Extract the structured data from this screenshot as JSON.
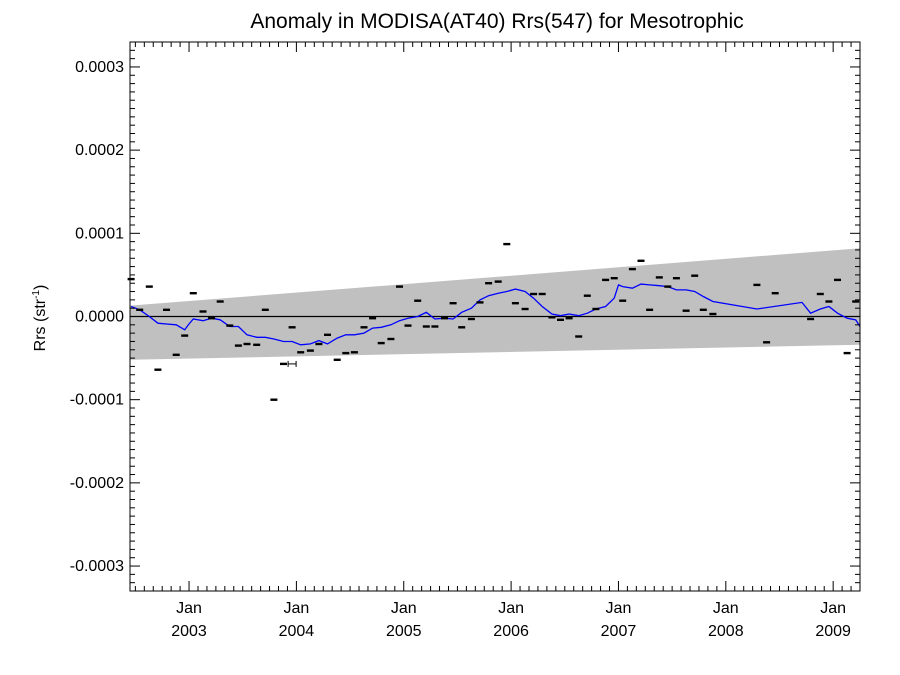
{
  "chart_data": {
    "type": "scatter",
    "title": "Anomaly in MODISA(AT40) Rrs(547) for Mesotrophic",
    "ylabel": "Rrs (str",
    "ylabel_sup": "-1",
    "ylabel_close": ")",
    "xlabel": "",
    "xlim": [
      2002.45,
      2009.25
    ],
    "ylim": [
      -0.00033,
      0.00033
    ],
    "grid": false,
    "yticks": [
      {
        "value": 0.0003,
        "label": "0.0003"
      },
      {
        "value": 0.0002,
        "label": "0.0002"
      },
      {
        "value": 0.0001,
        "label": "0.0001"
      },
      {
        "value": 0.0,
        "label": "0.0000"
      },
      {
        "value": -0.0001,
        "label": "-0.0001"
      },
      {
        "value": -0.0002,
        "label": "-0.0002"
      },
      {
        "value": -0.0003,
        "label": "-0.0003"
      }
    ],
    "xticks": [
      {
        "value": 2003.0,
        "month": "Jan",
        "year": "2003"
      },
      {
        "value": 2004.0,
        "month": "Jan",
        "year": "2004"
      },
      {
        "value": 2005.0,
        "month": "Jan",
        "year": "2005"
      },
      {
        "value": 2006.0,
        "month": "Jan",
        "year": "2006"
      },
      {
        "value": 2007.0,
        "month": "Jan",
        "year": "2007"
      },
      {
        "value": 2008.0,
        "month": "Jan",
        "year": "2008"
      },
      {
        "value": 2009.0,
        "month": "Jan",
        "year": "2009"
      }
    ],
    "band": {
      "x": [
        2002.45,
        2009.25
      ],
      "upper": [
        1.3e-05,
        8.2e-05
      ],
      "lower": [
        -5.2e-05,
        -3.4e-05
      ],
      "color": "#c0c0c0"
    },
    "zero_line": 0.0,
    "points": {
      "color": "#000000",
      "x": [
        2002.46,
        2002.54,
        2002.63,
        2002.71,
        2002.79,
        2002.88,
        2002.96,
        2003.04,
        2003.13,
        2003.21,
        2003.29,
        2003.38,
        2003.46,
        2003.54,
        2003.63,
        2003.71,
        2003.79,
        2003.88,
        2003.96,
        2004.04,
        2004.13,
        2004.21,
        2004.29,
        2004.38,
        2004.46,
        2004.54,
        2004.63,
        2004.71,
        2004.79,
        2004.88,
        2004.96,
        2005.04,
        2005.13,
        2005.21,
        2005.29,
        2005.38,
        2005.46,
        2005.54,
        2005.63,
        2005.71,
        2005.79,
        2005.88,
        2005.96,
        2006.04,
        2006.13,
        2006.21,
        2006.29,
        2006.38,
        2006.46,
        2006.54,
        2006.63,
        2006.71,
        2006.79,
        2006.88,
        2006.96,
        2007.04,
        2007.13,
        2007.21,
        2007.29,
        2007.38,
        2007.46,
        2007.54,
        2007.63,
        2007.71,
        2007.79,
        2007.88,
        2008.29,
        2008.38,
        2008.46,
        2008.79,
        2008.88,
        2008.96,
        2009.04,
        2009.13,
        2009.21
      ],
      "y": [
        4.5e-05,
        8e-06,
        3.6e-05,
        -6.4e-05,
        8e-06,
        -4.6e-05,
        -2.3e-05,
        2.8e-05,
        6e-06,
        -2e-06,
        1.8e-05,
        -1.1e-05,
        -3.5e-05,
        -3.3e-05,
        -3.4e-05,
        8e-06,
        -0.0001,
        -5.7e-05,
        -1.3e-05,
        -4.3e-05,
        -4.1e-05,
        -3.3e-05,
        -2.2e-05,
        -5.2e-05,
        -4.4e-05,
        -4.3e-05,
        -1.3e-05,
        -2e-06,
        -3.2e-05,
        -2.7e-05,
        3.6e-05,
        -1.1e-05,
        1.9e-05,
        -1.2e-05,
        -1.2e-05,
        -2e-06,
        1.6e-05,
        -1.3e-05,
        -3e-06,
        1.7e-05,
        4e-05,
        4.2e-05,
        8.7e-05,
        1.6e-05,
        9e-06,
        2.7e-05,
        2.7e-05,
        -1e-06,
        -4e-06,
        -2e-06,
        -2.4e-05,
        2.5e-05,
        9e-06,
        4.4e-05,
        4.6e-05,
        1.9e-05,
        5.7e-05,
        6.7e-05,
        8e-06,
        4.7e-05,
        3.6e-05,
        4.6e-05,
        7e-06,
        4.9e-05,
        8e-06,
        3e-06,
        3.8e-05,
        -3.1e-05,
        2.8e-05,
        -3e-06,
        2.7e-05,
        1.8e-05,
        4.4e-05,
        -4.4e-05,
        1.8e-05
      ]
    },
    "error_bar_points": [
      {
        "x": 2003.96,
        "y": -5.7e-05
      }
    ],
    "series": [
      {
        "color": "#0000ff",
        "x": [
          2002.46,
          2002.54,
          2002.63,
          2002.71,
          2002.79,
          2002.88,
          2002.96,
          2003.0,
          2003.04,
          2003.13,
          2003.21,
          2003.29,
          2003.38,
          2003.46,
          2003.54,
          2003.63,
          2003.71,
          2003.79,
          2003.88,
          2003.96,
          2004.04,
          2004.13,
          2004.21,
          2004.29,
          2004.38,
          2004.46,
          2004.54,
          2004.63,
          2004.71,
          2004.79,
          2004.88,
          2004.96,
          2005.04,
          2005.13,
          2005.21,
          2005.29,
          2005.38,
          2005.46,
          2005.54,
          2005.63,
          2005.71,
          2005.79,
          2005.88,
          2005.96,
          2006.04,
          2006.13,
          2006.21,
          2006.29,
          2006.38,
          2006.46,
          2006.54,
          2006.63,
          2006.71,
          2006.79,
          2006.88,
          2006.96,
          2007.0,
          2007.04,
          2007.13,
          2007.21,
          2007.29,
          2007.38,
          2007.46,
          2007.54,
          2007.63,
          2007.71,
          2007.79,
          2007.88,
          2008.29,
          2008.71,
          2008.79,
          2008.88,
          2008.96,
          2009.04,
          2009.13,
          2009.21,
          2009.25
        ],
        "y": [
          1.2e-05,
          8e-06,
          0.0,
          -8e-06,
          -9e-06,
          -1e-05,
          -1.6e-05,
          -9e-06,
          -3e-06,
          -5e-06,
          -2e-06,
          -4e-06,
          -1.2e-05,
          -1.2e-05,
          -2.2e-05,
          -2.5e-05,
          -2.5e-05,
          -2.7e-05,
          -3e-05,
          -3e-05,
          -3.4e-05,
          -3.3e-05,
          -2.9e-05,
          -3.3e-05,
          -2.6e-05,
          -2.2e-05,
          -2.2e-05,
          -2e-05,
          -1.4e-05,
          -1.3e-05,
          -1e-05,
          -5e-06,
          -2e-06,
          0.0,
          5e-06,
          -3e-06,
          -2e-06,
          -3e-06,
          5e-06,
          1e-05,
          2e-05,
          2.5e-05,
          2.8e-05,
          3e-05,
          3.3e-05,
          3e-05,
          2.2e-05,
          1.2e-05,
          3e-06,
          1e-06,
          3e-06,
          1e-06,
          4e-06,
          9e-06,
          1.2e-05,
          2.2e-05,
          3.8e-05,
          3.6e-05,
          3.4e-05,
          3.9e-05,
          3.8e-05,
          3.7e-05,
          3.6e-05,
          3.2e-05,
          3.2e-05,
          3e-05,
          2.4e-05,
          1.8e-05,
          9e-06,
          1.7e-05,
          4e-06,
          9e-06,
          1.2e-05,
          4e-06,
          -2e-06,
          -4e-06,
          -1.2e-05
        ]
      }
    ]
  }
}
